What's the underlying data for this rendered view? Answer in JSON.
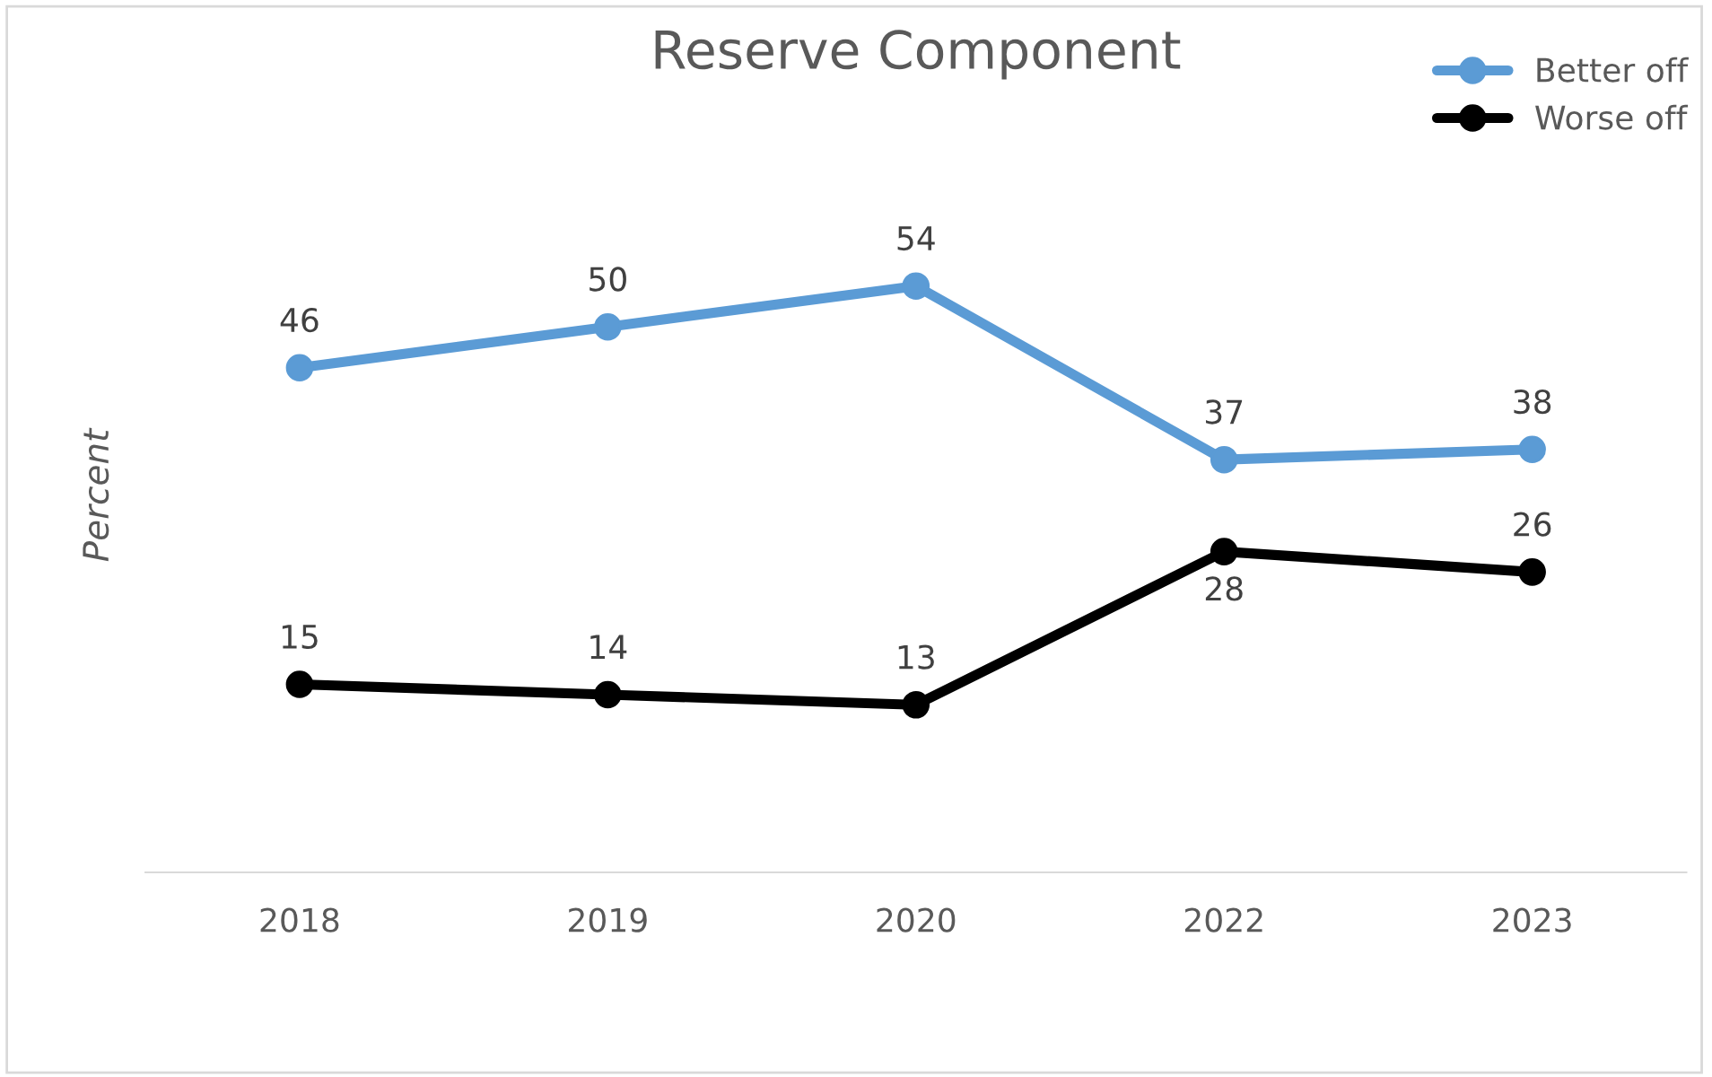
{
  "chart_data": {
    "type": "line",
    "title": "Reserve Component",
    "ylabel": "Percent",
    "categories": [
      "2018",
      "2019",
      "2020",
      "2022",
      "2023"
    ],
    "series": [
      {
        "name": "Better off",
        "color": "#5b9bd5",
        "values": [
          46,
          50,
          54,
          37,
          38
        ]
      },
      {
        "name": "Worse off",
        "color": "#000000",
        "values": [
          15,
          14,
          13,
          28,
          26
        ]
      }
    ],
    "data_labels": true,
    "legend": "top right",
    "marker": "circle",
    "line_style": "solid",
    "grid": false,
    "tick_labels": "x"
  }
}
